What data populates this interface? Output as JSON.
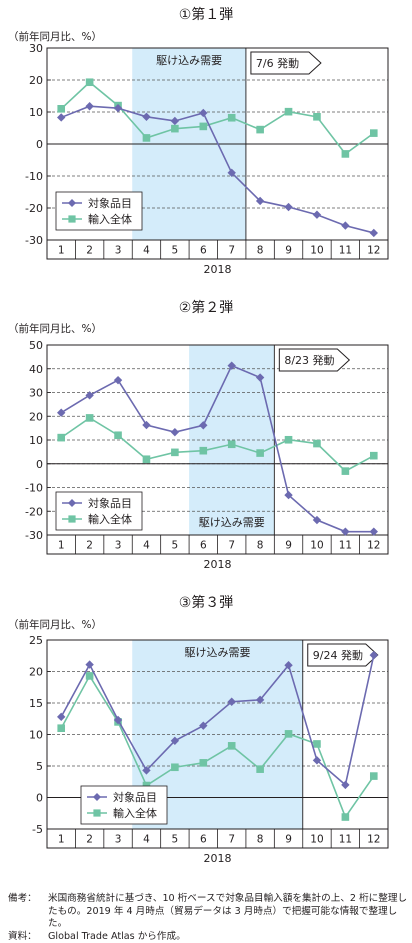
{
  "chart_data": [
    {
      "type": "line",
      "title": "①第１弾",
      "ylabel": "（前年同月比、%）",
      "xlabel": "2018",
      "categories": [
        "1",
        "2",
        "3",
        "4",
        "5",
        "6",
        "7",
        "8",
        "9",
        "10",
        "11",
        "12"
      ],
      "ylim": [
        -30,
        30
      ],
      "yticks": [
        30,
        20,
        10,
        0,
        -10,
        -20,
        -30
      ],
      "grid": true,
      "legend": "bottom-left",
      "shade": {
        "from": 4,
        "to": 7,
        "label": "駆け込み需要",
        "label_position": "top"
      },
      "event": {
        "at": 7,
        "label": "7/6 発動"
      },
      "series": [
        {
          "name": "対象品目",
          "marker": "diamond",
          "color": "#6c6ab0",
          "values": [
            8.3,
            11.8,
            11.2,
            8.5,
            7.2,
            9.7,
            -9.0,
            -17.8,
            -19.7,
            -22.1,
            -25.5,
            -27.8
          ]
        },
        {
          "name": "輸入全体",
          "marker": "square",
          "color": "#6fc4a4",
          "values": [
            11.0,
            19.3,
            12.0,
            1.9,
            4.8,
            5.5,
            8.2,
            4.5,
            10.1,
            8.5,
            -3.1,
            3.4
          ]
        }
      ]
    },
    {
      "type": "line",
      "title": "②第２弾",
      "ylabel": "（前年同月比、%）",
      "xlabel": "2018",
      "categories": [
        "1",
        "2",
        "3",
        "4",
        "5",
        "6",
        "7",
        "8",
        "9",
        "10",
        "11",
        "12"
      ],
      "ylim": [
        -30,
        50
      ],
      "yticks": [
        50,
        40,
        30,
        20,
        10,
        0,
        -10,
        -20,
        -30
      ],
      "grid": true,
      "legend": "bottom-left",
      "shade": {
        "from": 6,
        "to": 8,
        "label": "駆け込み需要",
        "label_position": "bottom"
      },
      "event": {
        "at": 8,
        "label": "8/23 発動"
      },
      "series": [
        {
          "name": "対象品目",
          "marker": "diamond",
          "color": "#6c6ab0",
          "values": [
            21.5,
            28.8,
            35.2,
            16.3,
            13.3,
            16.2,
            41.3,
            36.3,
            -13.2,
            -23.7,
            -28.6,
            -28.6
          ]
        },
        {
          "name": "輸入全体",
          "marker": "square",
          "color": "#6fc4a4",
          "values": [
            11.0,
            19.3,
            12.0,
            1.9,
            4.8,
            5.5,
            8.2,
            4.5,
            10.1,
            8.5,
            -3.1,
            3.4
          ]
        }
      ]
    },
    {
      "type": "line",
      "title": "③第３弾",
      "ylabel": "（前年同月比、%）",
      "xlabel": "2018",
      "categories": [
        "1",
        "2",
        "3",
        "4",
        "5",
        "6",
        "7",
        "8",
        "9",
        "10",
        "11",
        "12"
      ],
      "ylim": [
        -5,
        25
      ],
      "yticks": [
        25,
        20,
        15,
        10,
        5,
        0,
        -5
      ],
      "grid": true,
      "legend": "bottom-center",
      "shade": {
        "from": 4,
        "to": 9,
        "label": "駆け込み需要",
        "label_position": "top"
      },
      "event": {
        "at": 9,
        "label": "9/24 発動"
      },
      "series": [
        {
          "name": "対象品目",
          "marker": "diamond",
          "color": "#6c6ab0",
          "values": [
            12.8,
            21.1,
            12.3,
            4.3,
            9.0,
            11.4,
            15.2,
            15.5,
            21.0,
            5.9,
            2.0,
            22.6
          ]
        },
        {
          "name": "輸入全体",
          "marker": "square",
          "color": "#6fc4a4",
          "values": [
            11.0,
            19.3,
            12.0,
            1.9,
            4.8,
            5.5,
            8.2,
            4.5,
            10.1,
            8.5,
            -3.1,
            3.4
          ]
        }
      ]
    }
  ],
  "notes": {
    "biko_label": "備考：",
    "biko_text": "米国商務省統計に基づき、10 桁ベースで対象品目輸入額を集計の上、2 桁に整理したもの。2019 年 4 月時点（貿易データは 3 月時点）で把握可能な情報で整理した。",
    "shiryo_label": "資料：",
    "shiryo_text": "Global Trade Atlas から作成。"
  },
  "colors": {
    "shade": "#d4ecfa",
    "axis": "#231f20",
    "grid": "#555555"
  }
}
